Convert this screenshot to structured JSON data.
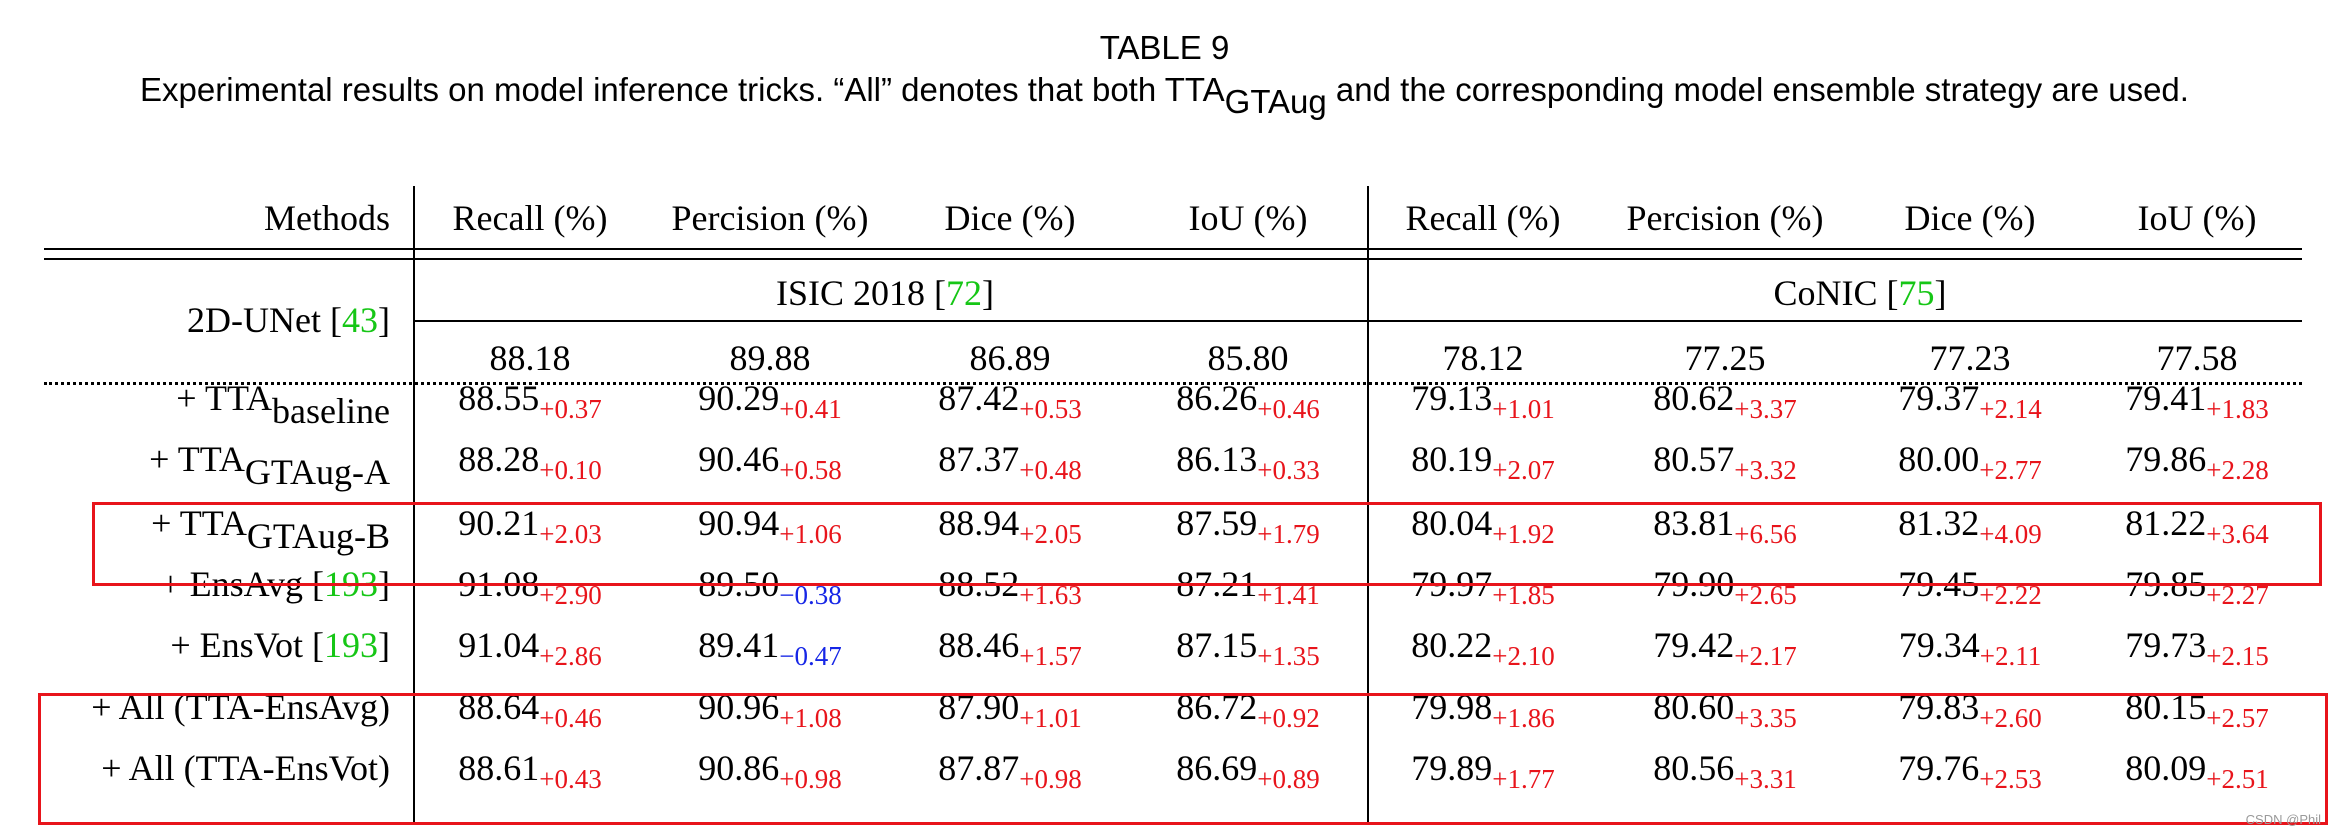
{
  "table": {
    "title": "TABLE 9",
    "caption_pre": "Experimental results on model inference tricks. “All” denotes that both TTA",
    "caption_sub": "GTAug",
    "caption_post": " and the corresponding model ensemble strategy are used.",
    "columns": [
      "Methods",
      "Recall (%)",
      "Percision (%)",
      "Dice (%)",
      "IoU (%)",
      "Recall (%)",
      "Percision (%)",
      "Dice (%)",
      "IoU (%)"
    ],
    "baseline": {
      "name": "2D-UNet [",
      "ref": "43",
      "close": "]",
      "datasets": [
        {
          "name": "ISIC 2018 [",
          "ref": "72",
          "close": "]"
        },
        {
          "name": "CoNIC [",
          "ref": "75",
          "close": "]"
        }
      ],
      "values": [
        "88.18",
        "89.88",
        "86.89",
        "85.80",
        "78.12",
        "77.25",
        "77.23",
        "77.58"
      ]
    },
    "rows": [
      {
        "pre": "+ TTA",
        "sub": "baseline",
        "post": "",
        "ref": "",
        "close": "",
        "highlight": false,
        "cells": [
          [
            "88.55",
            "+0.37"
          ],
          [
            "90.29",
            "+0.41"
          ],
          [
            "87.42",
            "+0.53"
          ],
          [
            "86.26",
            "+0.46"
          ],
          [
            "79.13",
            "+1.01"
          ],
          [
            "80.62",
            "+3.37"
          ],
          [
            "79.37",
            "+2.14"
          ],
          [
            "79.41",
            "+1.83"
          ]
        ]
      },
      {
        "pre": "+ TTA",
        "sub": "GTAug-A",
        "post": "",
        "ref": "",
        "close": "",
        "highlight": false,
        "cells": [
          [
            "88.28",
            "+0.10"
          ],
          [
            "90.46",
            "+0.58"
          ],
          [
            "87.37",
            "+0.48"
          ],
          [
            "86.13",
            "+0.33"
          ],
          [
            "80.19",
            "+2.07"
          ],
          [
            "80.57",
            "+3.32"
          ],
          [
            "80.00",
            "+2.77"
          ],
          [
            "79.86",
            "+2.28"
          ]
        ]
      },
      {
        "pre": "+ TTA",
        "sub": "GTAug-B",
        "post": "",
        "ref": "",
        "close": "",
        "highlight": true,
        "cells": [
          [
            "90.21",
            "+2.03"
          ],
          [
            "90.94",
            "+1.06"
          ],
          [
            "88.94",
            "+2.05"
          ],
          [
            "87.59",
            "+1.79"
          ],
          [
            "80.04",
            "+1.92"
          ],
          [
            "83.81",
            "+6.56"
          ],
          [
            "81.32",
            "+4.09"
          ],
          [
            "81.22",
            "+3.64"
          ]
        ]
      },
      {
        "pre": "+ EnsAvg [",
        "sub": "",
        "post": "",
        "ref": "193",
        "close": "]",
        "highlight": false,
        "cells": [
          [
            "91.08",
            "+2.90"
          ],
          [
            "89.50",
            "−0.38"
          ],
          [
            "88.52",
            "+1.63"
          ],
          [
            "87.21",
            "+1.41"
          ],
          [
            "79.97",
            "+1.85"
          ],
          [
            "79.90",
            "+2.65"
          ],
          [
            "79.45",
            "+2.22"
          ],
          [
            "79.85",
            "+2.27"
          ]
        ]
      },
      {
        "pre": "+ EnsVot [",
        "sub": "",
        "post": "",
        "ref": "193",
        "close": "]",
        "highlight": false,
        "cells": [
          [
            "91.04",
            "+2.86"
          ],
          [
            "89.41",
            "−0.47"
          ],
          [
            "88.46",
            "+1.57"
          ],
          [
            "87.15",
            "+1.35"
          ],
          [
            "80.22",
            "+2.10"
          ],
          [
            "79.42",
            "+2.17"
          ],
          [
            "79.34",
            "+2.11"
          ],
          [
            "79.73",
            "+2.15"
          ]
        ]
      },
      {
        "pre": "+ All (TTA-EnsAvg)",
        "sub": "",
        "post": "",
        "ref": "",
        "close": "",
        "highlight": true,
        "cells": [
          [
            "88.64",
            "+0.46"
          ],
          [
            "90.96",
            "+1.08"
          ],
          [
            "87.90",
            "+1.01"
          ],
          [
            "86.72",
            "+0.92"
          ],
          [
            "79.98",
            "+1.86"
          ],
          [
            "80.60",
            "+3.35"
          ],
          [
            "79.83",
            "+2.60"
          ],
          [
            "80.15",
            "+2.57"
          ]
        ]
      },
      {
        "pre": "+ All (TTA-EnsVot)",
        "sub": "",
        "post": "",
        "ref": "",
        "close": "",
        "highlight": true,
        "cells": [
          [
            "88.61",
            "+0.43"
          ],
          [
            "90.86",
            "+0.98"
          ],
          [
            "87.87",
            "+0.98"
          ],
          [
            "86.69",
            "+0.89"
          ],
          [
            "79.89",
            "+1.77"
          ],
          [
            "80.56",
            "+3.31"
          ],
          [
            "79.76",
            "+2.53"
          ],
          [
            "80.09",
            "+2.51"
          ]
        ]
      }
    ],
    "colors": {
      "positive": "#e8141b",
      "negative": "#1626e6",
      "ref": "#16c616",
      "highlight_box": "#e8141b"
    }
  },
  "watermark": "CSDN @Phil"
}
